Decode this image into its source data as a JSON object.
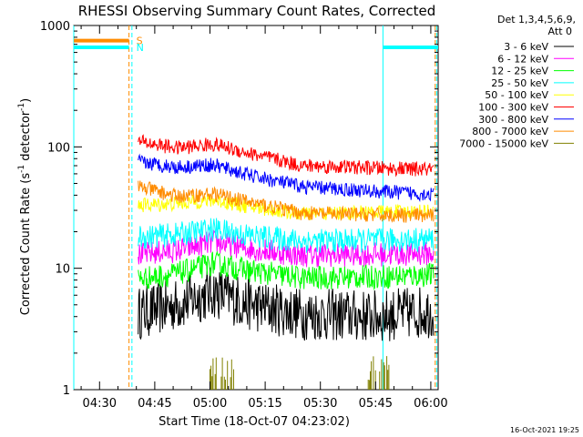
{
  "chart_data": {
    "type": "line",
    "title": "RHESSI Observing Summary Count Rates, Corrected",
    "xlabel": "Start Time (18-Oct-07 04:23:02)",
    "ylabel": "Corrected Count Rate (s",
    "ylabel_sup1": "-1",
    "ylabel_mid": " detector",
    "ylabel_sup2": "-1",
    "ylabel_end": ")",
    "yscale": "log",
    "ylim": [
      1,
      1000
    ],
    "xlim_minutes": [
      0,
      99
    ],
    "x_ticks": [
      {
        "label": "04:30",
        "t": 7
      },
      {
        "label": "04:45",
        "t": 22
      },
      {
        "label": "05:00",
        "t": 37
      },
      {
        "label": "05:15",
        "t": 52
      },
      {
        "label": "05:30",
        "t": 67
      },
      {
        "label": "05:45",
        "t": 82
      },
      {
        "label": "06:00",
        "t": 97
      }
    ],
    "y_ticks": [
      {
        "label": "1",
        "v": 1
      },
      {
        "label": "10",
        "v": 10
      },
      {
        "label": "100",
        "v": 100
      },
      {
        "label": "1000",
        "v": 1000
      }
    ],
    "legend_header": [
      "Det 1,3,4,5,6,9,",
      "Att 0"
    ],
    "series": [
      {
        "name": "3 - 6 keV",
        "color": "#000000",
        "profile": [
          [
            18,
            4.3
          ],
          [
            28,
            5.0
          ],
          [
            38,
            6.4
          ],
          [
            48,
            5.0
          ],
          [
            62,
            4.2
          ],
          [
            82,
            4.0
          ],
          [
            96,
            4.4
          ]
        ]
      },
      {
        "name": "6 - 12 keV",
        "color": "#ff00ff",
        "profile": [
          [
            18,
            13.0
          ],
          [
            28,
            14.0
          ],
          [
            38,
            16.5
          ],
          [
            48,
            14.5
          ],
          [
            62,
            12.8
          ],
          [
            82,
            13.0
          ],
          [
            96,
            13.2
          ]
        ]
      },
      {
        "name": "12 - 25 keV",
        "color": "#00ff00",
        "profile": [
          [
            18,
            8.2
          ],
          [
            28,
            9.0
          ],
          [
            38,
            11.0
          ],
          [
            48,
            9.5
          ],
          [
            62,
            8.3
          ],
          [
            82,
            8.5
          ],
          [
            96,
            8.8
          ]
        ]
      },
      {
        "name": "25 - 50 keV",
        "color": "#00ffff",
        "profile": [
          [
            18,
            18.0
          ],
          [
            28,
            19.0
          ],
          [
            38,
            21.0
          ],
          [
            48,
            18.5
          ],
          [
            62,
            16.8
          ],
          [
            82,
            17.0
          ],
          [
            96,
            17.3
          ]
        ]
      },
      {
        "name": "50 - 100 keV",
        "color": "#ffff00",
        "profile": [
          [
            18,
            33.0
          ],
          [
            28,
            34.0
          ],
          [
            38,
            36.5
          ],
          [
            48,
            32.0
          ],
          [
            62,
            28.0
          ],
          [
            82,
            29.0
          ],
          [
            96,
            29.5
          ]
        ]
      },
      {
        "name": "100 - 300 keV",
        "color": "#ff0000",
        "profile": [
          [
            18,
            110.0
          ],
          [
            28,
            98.0
          ],
          [
            38,
            105.0
          ],
          [
            48,
            88.0
          ],
          [
            62,
            70.0
          ],
          [
            82,
            67.0
          ],
          [
            96,
            65.0
          ]
        ]
      },
      {
        "name": "300 - 800 keV",
        "color": "#0000ff",
        "profile": [
          [
            18,
            75.0
          ],
          [
            28,
            68.0
          ],
          [
            38,
            71.0
          ],
          [
            48,
            58.0
          ],
          [
            62,
            47.0
          ],
          [
            82,
            43.0
          ],
          [
            96,
            41.0
          ]
        ]
      },
      {
        "name": "800 - 7000 keV",
        "color": "#ff8c00",
        "profile": [
          [
            18,
            47.0
          ],
          [
            28,
            39.0
          ],
          [
            38,
            41.0
          ],
          [
            48,
            35.0
          ],
          [
            62,
            28.5
          ],
          [
            82,
            27.5
          ],
          [
            96,
            27.0
          ]
        ]
      },
      {
        "name": "7000 - 15000 keV",
        "color": "#808000",
        "profile": [
          [
            37,
            1.5
          ],
          [
            43,
            1.3
          ],
          [
            80,
            1.5
          ],
          [
            86,
            1.3
          ]
        ]
      }
    ],
    "flags": [
      {
        "label": "S",
        "color": "#ff8c00",
        "value": 750,
        "start": 0,
        "end": 15
      },
      {
        "label": "N",
        "color": "#00ffff",
        "value": 660,
        "start": 0,
        "end": 15
      },
      {
        "label": "",
        "color": "#00ffff",
        "value": 660,
        "start": 84,
        "end": 99
      }
    ],
    "markers": [
      {
        "t": 0.0,
        "color": "#00ffff",
        "style": "solid"
      },
      {
        "t": 15.8,
        "color": "#00ffff",
        "style": "dashed"
      },
      {
        "t": 15.0,
        "color": "#ff8c00",
        "style": "dashed"
      },
      {
        "t": 84.0,
        "color": "#00ffff",
        "style": "solid"
      },
      {
        "t": 98.6,
        "color": "#00ffff",
        "style": "dashed"
      },
      {
        "t": 98.2,
        "color": "#ff8c00",
        "style": "dashed"
      }
    ]
  },
  "footer": {
    "timestamp": "16-Oct-2021 19:25"
  }
}
